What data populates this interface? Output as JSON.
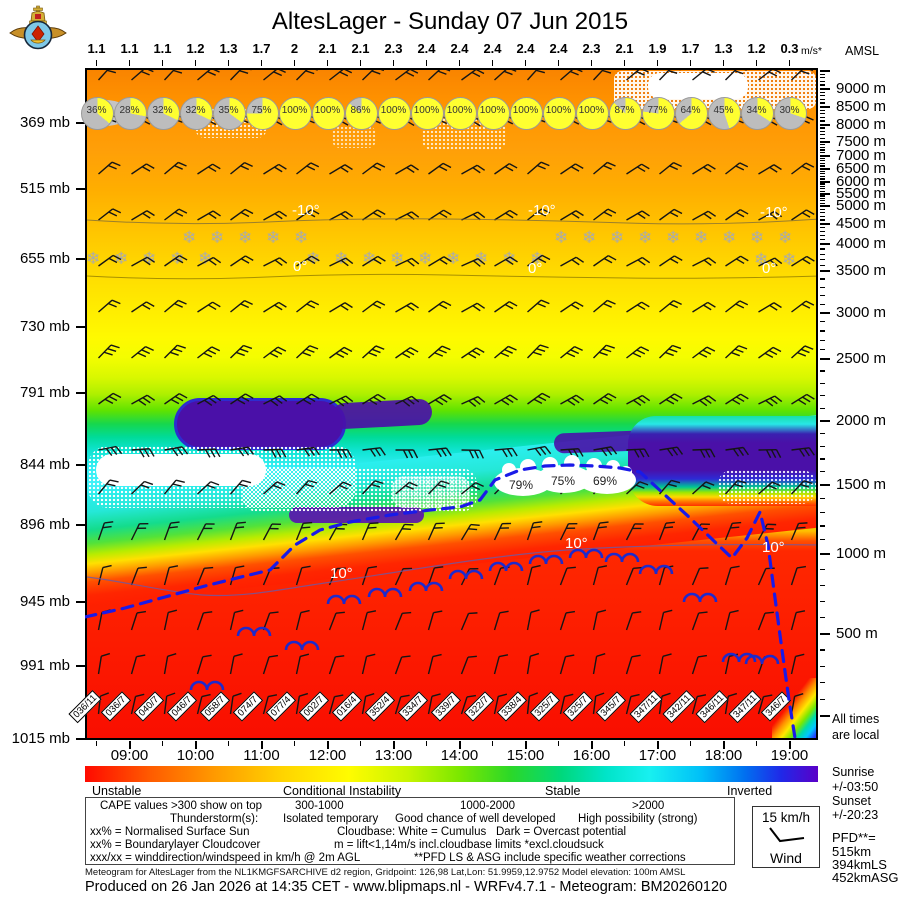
{
  "header": {
    "title": "AltesLager - Sunday 07 Jun 2015",
    "wind_units": "m/s*",
    "altitude_units": "AMSL"
  },
  "chart_data": {
    "type": "meteogram",
    "title": "AltesLager - Sunday 07 Jun 2015",
    "wind_speed_ms": [
      "1.1",
      "1.1",
      "1.1",
      "1.2",
      "1.3",
      "1.7",
      "2",
      "2.1",
      "2.1",
      "2.3",
      "2.4",
      "2.4",
      "2.4",
      "2.4",
      "2.4",
      "2.3",
      "2.1",
      "1.9",
      "1.7",
      "1.3",
      "1.2",
      "0.3"
    ],
    "surface_sun_pct": [
      36,
      28,
      32,
      32,
      35,
      75,
      100,
      100,
      86,
      100,
      100,
      100,
      100,
      100,
      100,
      100,
      87,
      77,
      64,
      45,
      34,
      30
    ],
    "boundary_cloud_pct": [
      "79%",
      "75%",
      "69%"
    ],
    "surface_wind_dir_speed": [
      "036/11",
      "036/7",
      "040/7",
      "046/7",
      "058/7",
      "074/7",
      "077/4",
      "002/7",
      "016/4",
      "352/4",
      "334/7",
      "339/7",
      "322/7",
      "338/4",
      "325/7",
      "325/7",
      "345/7",
      "347/11",
      "342/11",
      "346/11",
      "347/11",
      "346/7"
    ],
    "hour_labels": [
      "09:00",
      "10:00",
      "11:00",
      "12:00",
      "13:00",
      "14:00",
      "15:00",
      "16:00",
      "17:00",
      "18:00",
      "19:00"
    ],
    "pressure_labels": [
      "369 mb",
      "515 mb",
      "655 mb",
      "730 mb",
      "791 mb",
      "844 mb",
      "896 mb",
      "945 mb",
      "991 mb",
      "1015 mb"
    ],
    "altitude_labels": [
      "9000 m",
      "8500 m",
      "8000 m",
      "7500 m",
      "7000 m",
      "6500 m",
      "6000 m",
      "5500 m",
      "5000 m",
      "4500 m",
      "4000 m",
      "3500 m",
      "3000 m",
      "2500 m",
      "2000 m",
      "1500 m",
      "1000 m",
      "500 m"
    ],
    "isotherm_labels": [
      "-10°",
      "0°",
      "10°"
    ],
    "colorbar_labels": [
      "Unstable",
      "Conditional Instability",
      "Stable",
      "Inverted"
    ]
  },
  "legend": {
    "rows": [
      [
        "CAPE values >300 show on top",
        "300-1000",
        "1000-2000",
        ">2000"
      ],
      [
        "Thunderstorm(s):",
        "Isolated temporary",
        "Good chance of well developed",
        "High possibility (strong)"
      ],
      [
        "xx% = Normalised Surface Sun",
        "Cloudbase: White = Cumulus",
        "Dark = Overcast potential"
      ],
      [
        "xx% = Boundarylayer Cloudcover",
        "m = lift<1,14m/s incl.cloudbase limits *excl.cloudsuck"
      ],
      [
        "xxx/xx = winddirection/windspeed in km/h @ 2m AGL",
        "**PFD LS & ASG include specific weather corrections"
      ]
    ]
  },
  "wind_box": {
    "speed": "15 km/h",
    "label": "Wind"
  },
  "side": {
    "all_times": "All times",
    "are_local": "are local",
    "sunrise_label": "Sunrise",
    "sunrise_value": "+/-03:50",
    "sunset_label": "Sunset",
    "sunset_value": "+/-20:23",
    "pfd_label": "PFD**=",
    "pfd_1": "515km",
    "pfd_2": "394kmLS",
    "pfd_3": "452kmASG"
  },
  "footer": {
    "line1": "Meteogram for AltesLager from the NL1KMGFSARCHIVE d2 region, Gridpoint: 126,98 Lat,Lon: 51.9959,12.9752 Model elevation: 100m AMSL",
    "line2": "Produced on 26 Jan 2026 at 14:35 CET - www.blipmaps.nl - WRFv4.7.1 - Meteogram: BM20260120"
  },
  "colors": {
    "unstable_red": "#FF1E00",
    "inverted_purple": "#4A10A8",
    "cloudbase_blue": "#1A1AE8",
    "snow_gray": "#ABABAB",
    "sun_yellow": "#FFFF30",
    "cover_gray": "#BDBDBD"
  }
}
